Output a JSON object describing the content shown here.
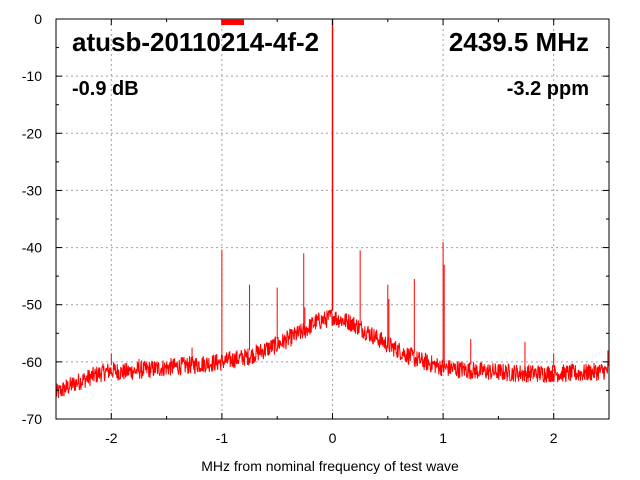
{
  "chart_data": {
    "type": "line",
    "title": "",
    "xlabel": "MHz from nominal frequency of test wave",
    "ylabel": "",
    "xlim": [
      -2.5,
      2.5
    ],
    "ylim": [
      -70,
      0
    ],
    "xticks": [
      -2,
      -1,
      0,
      1,
      2
    ],
    "yticks": [
      0,
      -10,
      -20,
      -30,
      -40,
      -50,
      -60,
      -70
    ],
    "grid": true,
    "annotations": {
      "device": "atusb-20110214-4f-2",
      "frequency": "2439.5 MHz",
      "level": "-0.9 dB",
      "offset": "-3.2 ppm"
    },
    "series": [
      {
        "color": "#ff0000",
        "x": [
          -2.5,
          -2.3,
          -2.1,
          -2.0,
          -1.9,
          -1.75,
          -1.5,
          -1.25,
          -1.0,
          -0.75,
          -0.5,
          -0.25,
          -0.15,
          -0.05,
          0.0,
          0.05,
          0.15,
          0.25,
          0.5,
          0.75,
          1.0,
          1.25,
          1.5,
          1.75,
          2.0,
          2.25,
          2.5
        ],
        "values": [
          -65.5,
          -63.5,
          -62.0,
          -61.5,
          -61.8,
          -61.5,
          -61.0,
          -60.5,
          -60.0,
          -59.0,
          -57.0,
          -54.5,
          -53.0,
          -52.5,
          -52.0,
          -52.5,
          -53.0,
          -54.0,
          -57.0,
          -59.5,
          -61.0,
          -61.5,
          -61.8,
          -62.0,
          -62.0,
          -62.0,
          -61.5
        ]
      }
    ],
    "spikes": [
      {
        "x": -2.0,
        "y": -58.5
      },
      {
        "x": -1.75,
        "y": -59.5
      },
      {
        "x": -1.27,
        "y": -57.5
      },
      {
        "x": -1.0,
        "y": -40.5
      },
      {
        "x": -0.75,
        "y": -46.5
      },
      {
        "x": -0.5,
        "y": -47.0
      },
      {
        "x": -0.26,
        "y": -41.0
      },
      {
        "x": -0.25,
        "y": -50.5
      },
      {
        "x": 0.0,
        "y": 0.0
      },
      {
        "x": 0.25,
        "y": -40.5
      },
      {
        "x": 0.5,
        "y": -46.5
      },
      {
        "x": 0.51,
        "y": -49.0
      },
      {
        "x": 0.74,
        "y": -45.5
      },
      {
        "x": 1.0,
        "y": -39.0
      },
      {
        "x": 1.01,
        "y": -43.0
      },
      {
        "x": 1.25,
        "y": -56.0
      },
      {
        "x": 1.74,
        "y": -56.5
      },
      {
        "x": 2.0,
        "y": -58.5
      },
      {
        "x": 2.49,
        "y": -58.0
      }
    ]
  }
}
